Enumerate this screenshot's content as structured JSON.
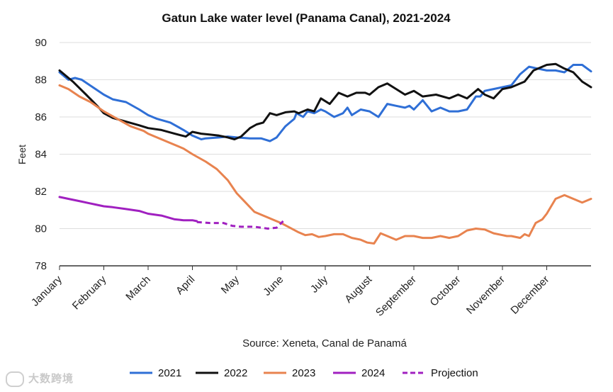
{
  "chart_data": {
    "type": "line",
    "title": "Gatun Lake water level (Panama Canal), 2021-2024",
    "xlabel": "",
    "ylabel": "Feet",
    "ylim": [
      78,
      90
    ],
    "yticks": [
      78,
      80,
      82,
      84,
      86,
      88,
      90
    ],
    "xlim": [
      0,
      12
    ],
    "categories": [
      "January",
      "February",
      "March",
      "April",
      "May",
      "June",
      "July",
      "August",
      "September",
      "October",
      "November",
      "December"
    ],
    "source": "Source: Xeneta, Canal de Panamá",
    "legend_position": "bottom",
    "series": [
      {
        "name": "2021",
        "color": "#2f6fd6",
        "dashed": false,
        "x": [
          0,
          0.2,
          0.35,
          0.5,
          0.75,
          1,
          1.2,
          1.5,
          1.8,
          2,
          2.2,
          2.5,
          2.8,
          3,
          3.2,
          3.3,
          3.6,
          3.8,
          4,
          4.3,
          4.55,
          4.75,
          4.9,
          5.0,
          5.1,
          5.2,
          5.3,
          5.35,
          5.5,
          5.6,
          5.75,
          5.9,
          6.0,
          6.2,
          6.4,
          6.5,
          6.6,
          6.8,
          7.0,
          7.2,
          7.4,
          7.6,
          7.8,
          7.9,
          8.0,
          8.2,
          8.4,
          8.6,
          8.8,
          9.0,
          9.2,
          9.4,
          9.5,
          9.6,
          9.8,
          10.0,
          10.2,
          10.4,
          10.6,
          10.8,
          11.0,
          11.2,
          11.4,
          11.6,
          11.8,
          12.0
        ],
        "y": [
          88.4,
          88.0,
          88.1,
          88.0,
          87.6,
          87.2,
          86.95,
          86.8,
          86.4,
          86.1,
          85.9,
          85.7,
          85.3,
          85.0,
          84.8,
          84.85,
          84.9,
          84.95,
          84.9,
          84.85,
          84.85,
          84.7,
          84.9,
          85.2,
          85.5,
          85.7,
          85.9,
          86.2,
          86.0,
          86.3,
          86.2,
          86.4,
          86.3,
          86.0,
          86.2,
          86.5,
          86.1,
          86.4,
          86.3,
          86.0,
          86.7,
          86.6,
          86.5,
          86.6,
          86.4,
          86.9,
          86.3,
          86.5,
          86.3,
          86.3,
          86.4,
          87.1,
          87.1,
          87.4,
          87.5,
          87.6,
          87.7,
          88.3,
          88.7,
          88.6,
          88.5,
          88.5,
          88.4,
          88.8,
          88.8,
          88.45
        ]
      },
      {
        "name": "2022",
        "color": "#111111",
        "dashed": false,
        "x": [
          0,
          0.3,
          0.6,
          0.85,
          1.0,
          1.2,
          1.5,
          1.8,
          2.0,
          2.3,
          2.6,
          2.85,
          3.0,
          3.2,
          3.4,
          3.6,
          3.8,
          3.95,
          4.1,
          4.3,
          4.45,
          4.6,
          4.75,
          4.9,
          5.1,
          5.3,
          5.4,
          5.6,
          5.75,
          5.9,
          6.1,
          6.3,
          6.5,
          6.7,
          6.9,
          7.0,
          7.2,
          7.4,
          7.6,
          7.8,
          8.0,
          8.2,
          8.5,
          8.8,
          9.0,
          9.2,
          9.3,
          9.45,
          9.6,
          9.8,
          10.0,
          10.2,
          10.5,
          10.7,
          10.9,
          11.0,
          11.2,
          11.4,
          11.6,
          11.8,
          12.0
        ],
        "y": [
          88.5,
          87.9,
          87.2,
          86.6,
          86.2,
          85.95,
          85.75,
          85.55,
          85.4,
          85.3,
          85.1,
          84.95,
          85.2,
          85.1,
          85.05,
          85.0,
          84.9,
          84.8,
          84.95,
          85.4,
          85.6,
          85.7,
          86.2,
          86.1,
          86.25,
          86.3,
          86.2,
          86.4,
          86.3,
          87.0,
          86.7,
          87.3,
          87.1,
          87.3,
          87.3,
          87.2,
          87.6,
          87.8,
          87.5,
          87.2,
          87.4,
          87.1,
          87.2,
          87.0,
          87.2,
          87.0,
          87.2,
          87.5,
          87.2,
          87.0,
          87.5,
          87.6,
          87.9,
          88.5,
          88.7,
          88.8,
          88.85,
          88.6,
          88.4,
          87.9,
          87.6
        ]
      },
      {
        "name": "2023",
        "color": "#e8834f",
        "dashed": false,
        "x": [
          0,
          0.2,
          0.45,
          0.7,
          1.0,
          1.3,
          1.6,
          1.9,
          2.0,
          2.2,
          2.5,
          2.8,
          3.0,
          3.3,
          3.55,
          3.8,
          4.0,
          4.2,
          4.4,
          4.6,
          4.8,
          5.0,
          5.2,
          5.4,
          5.55,
          5.7,
          5.85,
          6.0,
          6.2,
          6.4,
          6.6,
          6.8,
          6.95,
          7.1,
          7.25,
          7.4,
          7.6,
          7.8,
          8.0,
          8.2,
          8.4,
          8.6,
          8.8,
          9.0,
          9.2,
          9.4,
          9.6,
          9.8,
          10.0,
          10.1,
          10.2,
          10.4,
          10.5,
          10.6,
          10.75,
          10.9,
          11.0,
          11.2,
          11.4,
          11.6,
          11.8,
          12.0
        ],
        "y": [
          87.7,
          87.5,
          87.1,
          86.8,
          86.3,
          85.9,
          85.5,
          85.25,
          85.1,
          84.9,
          84.6,
          84.3,
          84.0,
          83.6,
          83.2,
          82.6,
          81.9,
          81.4,
          80.9,
          80.7,
          80.5,
          80.3,
          80.05,
          79.8,
          79.65,
          79.7,
          79.55,
          79.6,
          79.7,
          79.7,
          79.5,
          79.4,
          79.25,
          79.2,
          79.75,
          79.6,
          79.4,
          79.6,
          79.6,
          79.5,
          79.5,
          79.6,
          79.5,
          79.6,
          79.9,
          80.0,
          79.95,
          79.75,
          79.65,
          79.6,
          79.6,
          79.5,
          79.7,
          79.6,
          80.3,
          80.5,
          80.8,
          81.6,
          81.8,
          81.6,
          81.4,
          81.6
        ]
      },
      {
        "name": "2024",
        "color": "#a020c0",
        "dashed": false,
        "x": [
          0,
          0.2,
          0.5,
          0.8,
          1.0,
          1.2,
          1.5,
          1.8,
          2.0,
          2.3,
          2.6,
          2.8,
          3.0,
          3.1
        ],
        "y": [
          81.7,
          81.6,
          81.45,
          81.3,
          81.2,
          81.15,
          81.05,
          80.95,
          80.8,
          80.7,
          80.5,
          80.45,
          80.45,
          80.4
        ]
      },
      {
        "name": "Projection",
        "color": "#a020c0",
        "dashed": true,
        "x": [
          3.1,
          3.4,
          3.7,
          3.9,
          4.1,
          4.4,
          4.7,
          4.9,
          5.05
        ],
        "y": [
          80.35,
          80.3,
          80.3,
          80.15,
          80.1,
          80.1,
          80.0,
          80.05,
          80.4
        ]
      }
    ]
  },
  "watermark": "大数跨境"
}
